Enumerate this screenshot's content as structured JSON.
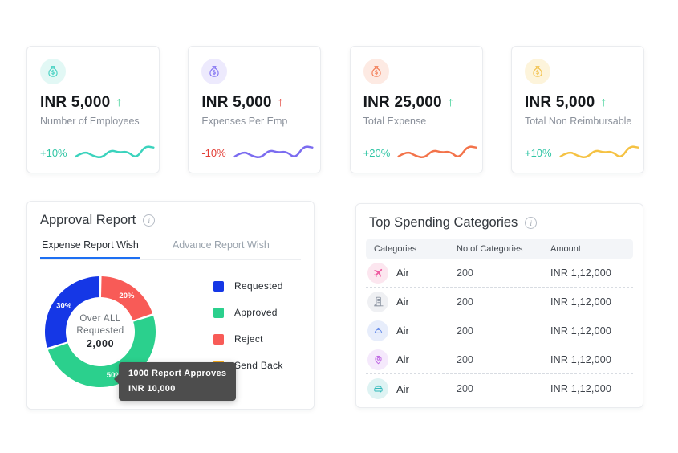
{
  "stat_cards": [
    {
      "icon": "money-bag-icon",
      "icon_bg": "#e2f8f5",
      "icon_color": "#45d1c2",
      "value": "INR 5,000",
      "arrow": "↑",
      "arrow_color": "#2ecc8e",
      "label": "Number of Employees",
      "delta": "+10%",
      "delta_color": "#2fc5a4",
      "line_color": "#3bd3bd"
    },
    {
      "icon": "money-bag-icon",
      "icon_bg": "#edeafd",
      "icon_color": "#8374f2",
      "value": "INR 5,000",
      "arrow": "↑",
      "arrow_color": "#e23e36",
      "label": "Expenses Per Emp",
      "delta": "-10%",
      "delta_color": "#e23e36",
      "line_color": "#7b6cf0"
    },
    {
      "icon": "money-bag-icon",
      "icon_bg": "#fdeae3",
      "icon_color": "#f37d57",
      "value": "INR 25,000",
      "arrow": "↑",
      "arrow_color": "#2ecc8e",
      "label": "Total Expense",
      "delta": "+20%",
      "delta_color": "#2fc5a4",
      "line_color": "#f3734a"
    },
    {
      "icon": "money-bag-icon",
      "icon_bg": "#fdf4db",
      "icon_color": "#f2c24e",
      "value": "INR 5,000",
      "arrow": "↑",
      "arrow_color": "#2ecc8e",
      "label": "Total Non Reimbursable",
      "delta": "+10%",
      "delta_color": "#2fc5a4",
      "line_color": "#f5c243"
    }
  ],
  "approval_report": {
    "title": "Approval Report",
    "tabs": [
      {
        "label": "Expense Report Wish"
      },
      {
        "label": "Advance Report Wish"
      }
    ],
    "active_tab": 0,
    "center": {
      "line1": "Over ALL",
      "line2": "Requested",
      "value": "2,000"
    },
    "tooltip": {
      "line1": "1000 Report Approves",
      "line2": "INR 10,000"
    },
    "legend": [
      {
        "label": "Requested",
        "color": "#1537e6"
      },
      {
        "label": "Approved",
        "color": "#2bd08d"
      },
      {
        "label": "Reject",
        "color": "#f85b57"
      },
      {
        "label": "Send Back",
        "color": "#f9ab16"
      }
    ]
  },
  "top_spending": {
    "title": "Top Spending Categories",
    "columns": [
      "Categories",
      "No of Categories",
      "Amount"
    ],
    "rows": [
      {
        "icon": "airplane-icon",
        "icon_bg": "#fce6ef",
        "icon_color": "#ee5aa0",
        "category": "Air",
        "count": "200",
        "amount": "INR 1,12,000"
      },
      {
        "icon": "hotel-building-icon",
        "icon_bg": "#eff0f3",
        "icon_color": "#8b93a1",
        "category": "Air",
        "count": "200",
        "amount": "INR 1,12,000"
      },
      {
        "icon": "food-cloche-icon",
        "icon_bg": "#e7edfb",
        "icon_color": "#5f86e8",
        "category": "Air",
        "count": "200",
        "amount": "INR 1,12,000"
      },
      {
        "icon": "location-pin-icon",
        "icon_bg": "#f5e9fc",
        "icon_color": "#bd63e3",
        "category": "Air",
        "count": "200",
        "amount": "INR 1,12,000"
      },
      {
        "icon": "taxi-icon",
        "icon_bg": "#def3f3",
        "icon_color": "#2fb9ba",
        "category": "Air",
        "count": "200",
        "amount": "INR 1,12,000"
      }
    ]
  },
  "chart_data": [
    {
      "type": "pie",
      "title": "Approval Report — Expense Report Wish",
      "donut": true,
      "slices_clockwise_from_top": [
        {
          "label": "Reject",
          "pct": 20,
          "pct_label": "20%",
          "color": "#f85b57"
        },
        {
          "label": "Approved",
          "pct": 50,
          "pct_label": "50%",
          "color": "#2bd08d"
        },
        {
          "label": "Requested",
          "pct": 30,
          "pct_label": "30%",
          "color": "#1537e6"
        }
      ],
      "legend_entries": [
        "Requested",
        "Approved",
        "Reject",
        "Send Back"
      ],
      "legend_position": "right",
      "center_label": "Over ALL Requested 2,000",
      "tooltip": "1000 Report Approves INR 10,000"
    },
    {
      "type": "line",
      "title": "Stat-card sparklines (decorative trend, no axes)",
      "x": [
        0,
        1,
        2,
        3,
        4,
        5,
        6,
        7,
        8,
        9
      ],
      "series": [
        {
          "name": "Number of Employees (+10%)",
          "values": [
            32,
            60,
            34,
            24,
            66,
            52,
            58,
            20,
            86,
            78
          ]
        },
        {
          "name": "Expenses Per Emp (-10%)",
          "values": [
            32,
            60,
            34,
            24,
            66,
            52,
            58,
            20,
            86,
            78
          ]
        },
        {
          "name": "Total Expense (+20%)",
          "values": [
            32,
            60,
            34,
            24,
            66,
            52,
            58,
            20,
            86,
            78
          ]
        },
        {
          "name": "Total Non Reimbursable (+10%)",
          "values": [
            32,
            60,
            34,
            24,
            66,
            52,
            58,
            20,
            86,
            78
          ]
        }
      ],
      "axes": "none",
      "grid": false
    }
  ]
}
